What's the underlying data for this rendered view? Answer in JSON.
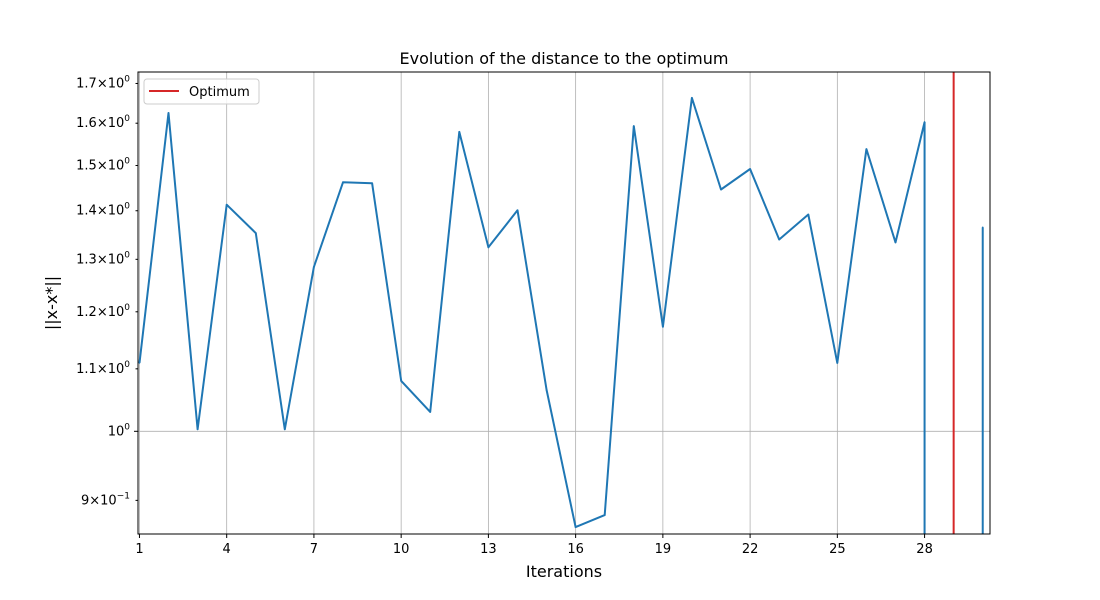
{
  "chart_data": {
    "type": "line",
    "title": "Evolution of the distance to the optimum",
    "xlabel": "Iterations",
    "ylabel": "||x-x*||",
    "yscale": "log",
    "grid": true,
    "legend_position": "top-left",
    "xlim": [
      0.95,
      30.25
    ],
    "ylim": [
      0.855,
      1.73
    ],
    "x_ticks": [
      1,
      4,
      7,
      10,
      13,
      16,
      19,
      22,
      25,
      28
    ],
    "y_ticks": [
      {
        "value": 0.9,
        "mantissa": "9",
        "exponent": "−1"
      },
      {
        "value": 1.0,
        "mantissa": "",
        "exponent": "0"
      },
      {
        "value": 1.1,
        "mantissa": "1.1",
        "exponent": "0"
      },
      {
        "value": 1.2,
        "mantissa": "1.2",
        "exponent": "0"
      },
      {
        "value": 1.3,
        "mantissa": "1.3",
        "exponent": "0"
      },
      {
        "value": 1.4,
        "mantissa": "1.4",
        "exponent": "0"
      },
      {
        "value": 1.5,
        "mantissa": "1.5",
        "exponent": "0"
      },
      {
        "value": 1.6,
        "mantissa": "1.6",
        "exponent": "0"
      },
      {
        "value": 1.7,
        "mantissa": "1.7",
        "exponent": "0"
      }
    ],
    "times_symbol": "×",
    "base": "10",
    "series": [
      {
        "color": "#1f77b4",
        "x": [
          1,
          2,
          3,
          4,
          5,
          6,
          7,
          8,
          9,
          10,
          11,
          12,
          13,
          14,
          15,
          16,
          17,
          18,
          19,
          20,
          21,
          22,
          23,
          24,
          25,
          26,
          27,
          28
        ],
        "values": [
          1.11,
          1.625,
          1.003,
          1.413,
          1.353,
          1.003,
          1.285,
          1.462,
          1.46,
          1.08,
          1.03,
          1.579,
          1.324,
          1.401,
          1.065,
          0.864,
          0.88,
          1.593,
          1.173,
          1.663,
          1.446,
          1.492,
          1.34,
          1.392,
          1.11,
          1.538,
          1.334,
          1.603
        ],
        "drop_to_axis_after_last": true
      },
      {
        "color": "#1f77b4",
        "x": [
          30
        ],
        "values": [
          1.365
        ],
        "drop_to_axis": true
      }
    ],
    "reference_lines": [
      {
        "name": "Optimum",
        "x": 29,
        "color": "#d62728"
      }
    ]
  }
}
